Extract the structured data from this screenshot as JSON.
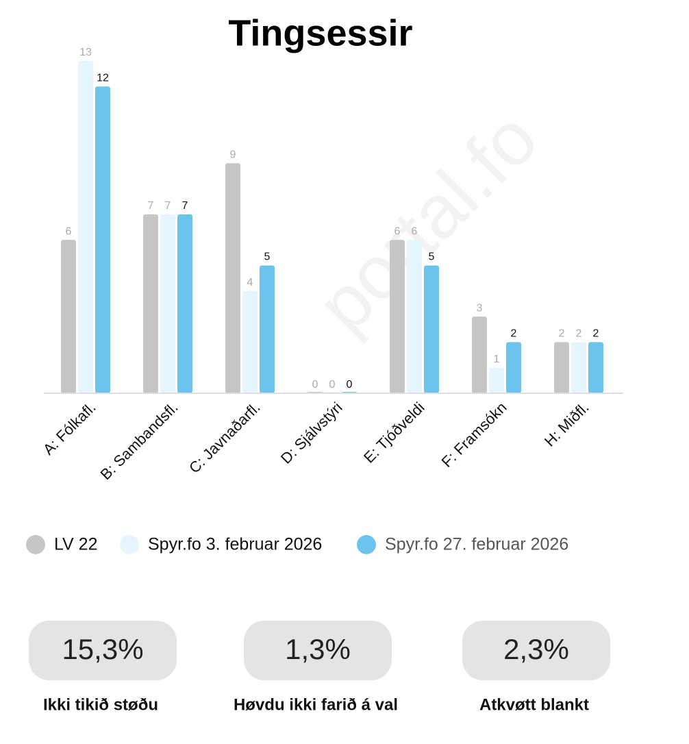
{
  "chart_data": {
    "type": "bar",
    "title": "Tingsessir",
    "categories": [
      "A: Fólkafl.",
      "B: Sambandsfl.",
      "C: Javnaðarfl.",
      "D: Sjálvstýri",
      "E: Tjóðveldi",
      "F: Framsókn",
      "H: Miðfl."
    ],
    "series": [
      {
        "name": "LV 22",
        "color": "#c6c6c6",
        "values": [
          6,
          7,
          9,
          0,
          6,
          3,
          2
        ]
      },
      {
        "name": "Spyr.fo 3. februar 2026",
        "color": "#e6f5fd",
        "values": [
          13,
          7,
          4,
          0,
          6,
          1,
          2
        ]
      },
      {
        "name": "Spyr.fo 27. februar 2026",
        "color": "#6cc3ec",
        "values": [
          12,
          7,
          5,
          0,
          5,
          2,
          2
        ]
      }
    ],
    "ylim": [
      0,
      13
    ]
  },
  "watermark": "portal.fo",
  "stats": [
    {
      "value": "15,3%",
      "label": "Ikki tikið støðu"
    },
    {
      "value": "1,3%",
      "label": "Høvdu ikki farið á val"
    },
    {
      "value": "2,3%",
      "label": "Atkvøtt blankt"
    }
  ]
}
